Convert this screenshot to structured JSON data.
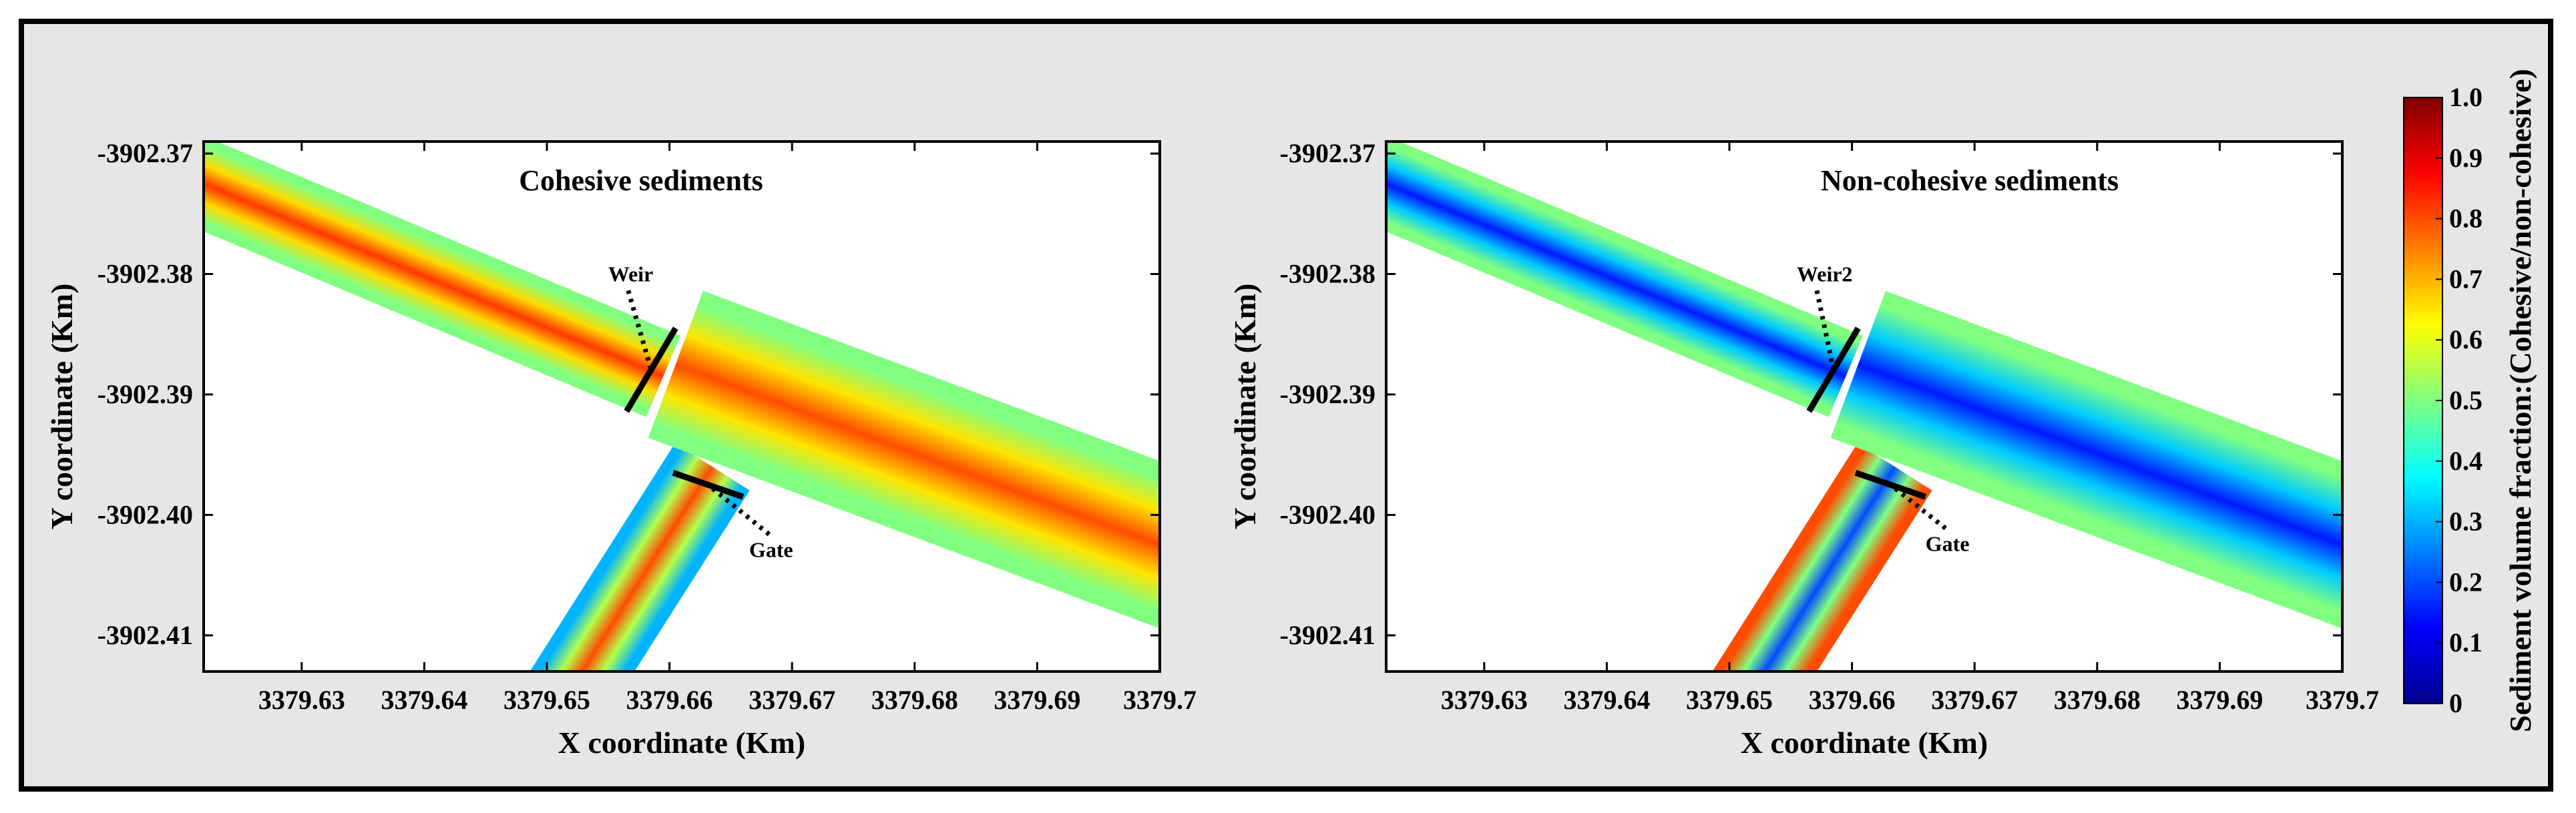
{
  "chart_data": [
    {
      "type": "heatmap",
      "title": "Cohesive sediments",
      "xlabel": "X coordinate (Km)",
      "ylabel": "Y coordinate (Km)",
      "x_ticks": [
        "3379.63",
        "3379.64",
        "3379.65",
        "3379.66",
        "3379.67",
        "3379.68",
        "3379.69",
        "3379.7"
      ],
      "y_ticks": [
        "-3902.37",
        "-3902.38",
        "-3902.39",
        "-3902.40",
        "-3902.41"
      ],
      "xlim": [
        3379.622,
        3379.7
      ],
      "ylim": [
        -3902.413,
        -3902.369
      ],
      "annotations": [
        {
          "text": "Weir",
          "x": 3379.655,
          "y": -3902.3806
        },
        {
          "text": "Gate",
          "x": 3379.6665,
          "y": -3902.4035
        }
      ],
      "fields": {
        "main_channel": {
          "center": 0.82,
          "edge": 0.5
        },
        "outlet_channel": {
          "center": 0.8,
          "edge": 0.5
        },
        "branch_channel": {
          "center": 0.8,
          "edge": 0.3
        }
      }
    },
    {
      "type": "heatmap",
      "title": "Non-cohesive sediments",
      "xlabel": "X coordinate (Km)",
      "ylabel": "Y coordinate (Km)",
      "x_ticks": [
        "3379.63",
        "3379.64",
        "3379.65",
        "3379.66",
        "3379.67",
        "3379.68",
        "3379.69",
        "3379.7"
      ],
      "y_ticks": [
        "-3902.37",
        "-3902.38",
        "-3902.39",
        "-3902.40",
        "-3902.41"
      ],
      "xlim": [
        3379.622,
        3379.7
      ],
      "ylim": [
        -3902.413,
        -3902.369
      ],
      "annotations": [
        {
          "text": "Weir2",
          "x": 3379.6555,
          "y": -3902.3806
        },
        {
          "text": "Gate",
          "x": 3379.666,
          "y": -3902.403
        }
      ],
      "fields": {
        "main_channel": {
          "center": 0.15,
          "edge": 0.5
        },
        "outlet_channel": {
          "center": 0.15,
          "edge": 0.5
        },
        "branch_channel": {
          "center": 0.2,
          "edge": 0.8
        }
      }
    }
  ],
  "colorbar": {
    "label": "Sediment volume fraction:(Cohesive/non-cohesive)",
    "ticks": [
      "0",
      "0.1",
      "0.2",
      "0.3",
      "0.4",
      "0.5",
      "0.6",
      "0.7",
      "0.8",
      "0.9",
      "1.0"
    ],
    "range": [
      0,
      1
    ],
    "colormap": "jet"
  },
  "geometry_data": {
    "main_channel": {
      "from": [
        3379.618,
        -3902.3708
      ],
      "to": [
        3379.6595,
        -3902.3885
      ],
      "half_width": 0.0036
    },
    "outlet_channel": {
      "from": [
        3379.6605,
        -3902.3875
      ],
      "to": [
        3379.704,
        -3902.404
      ],
      "half_width": 0.0064
    },
    "branch_channel": {
      "from": [
        3379.6635,
        -3902.396
      ],
      "to": [
        3379.651,
        -3902.416
      ],
      "half_width": 0.0036
    },
    "weir_line": {
      "from": [
        3379.6565,
        -3902.3914
      ],
      "to": [
        3379.6605,
        -3902.3845
      ]
    },
    "gate_line": {
      "from": [
        3379.6603,
        -3902.3965
      ],
      "to": [
        3379.666,
        -3902.3985
      ]
    }
  }
}
